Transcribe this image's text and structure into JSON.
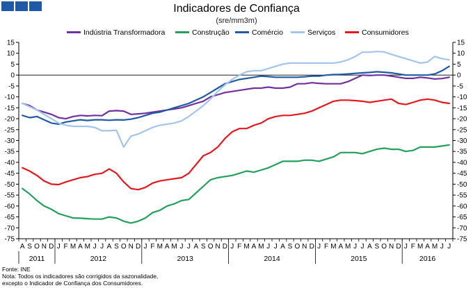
{
  "chart_data": {
    "type": "line",
    "title": "Indicadores de Confiança",
    "subtitle": "(sre/mm3m)",
    "ylim": [
      -75,
      15
    ],
    "y_ticks": [
      15,
      10,
      5,
      0,
      -5,
      -10,
      -15,
      -20,
      -25,
      -30,
      -35,
      -40,
      -45,
      -50,
      -55,
      -60,
      -65,
      -70,
      -75
    ],
    "months": [
      "A",
      "S",
      "O",
      "N",
      "D",
      "J",
      "F",
      "M",
      "A",
      "M",
      "J",
      "J",
      "A",
      "S",
      "O",
      "N",
      "D",
      "J",
      "F",
      "M",
      "A",
      "M",
      "J",
      "J",
      "A",
      "S",
      "O",
      "N",
      "D",
      "J",
      "F",
      "M",
      "A",
      "M",
      "J",
      "J",
      "A",
      "S",
      "O",
      "N",
      "D",
      "J",
      "F",
      "M",
      "A",
      "M",
      "J",
      "J",
      "A",
      "S",
      "O",
      "N",
      "D",
      "J",
      "F",
      "M",
      "A",
      "M",
      "J",
      "J"
    ],
    "years": [
      {
        "label": "2011",
        "start": 0,
        "count": 5
      },
      {
        "label": "2012",
        "start": 5,
        "count": 12
      },
      {
        "label": "2013",
        "start": 17,
        "count": 12
      },
      {
        "label": "2014",
        "start": 29,
        "count": 12
      },
      {
        "label": "2015",
        "start": 41,
        "count": 12
      },
      {
        "label": "2016",
        "start": 53,
        "count": 7
      }
    ],
    "series": [
      {
        "name": "Indústria Transformadora",
        "color": "#7030a0",
        "values": [
          -13,
          -14,
          -16,
          -17,
          -18,
          -19.5,
          -20,
          -19,
          -18.5,
          -18.7,
          -18.5,
          -18.6,
          -16.5,
          -16.3,
          -16.5,
          -18,
          -17.8,
          -17.5,
          -17,
          -16.5,
          -16,
          -15.5,
          -15,
          -14,
          -13,
          -12,
          -10,
          -9,
          -8,
          -7.5,
          -7,
          -6.5,
          -6,
          -6,
          -5.5,
          -6,
          -6,
          -5.5,
          -4,
          -4,
          -3.5,
          -3.8,
          -4,
          -4,
          -4,
          -3,
          -1.5,
          0,
          -0.2,
          0,
          0,
          -0.5,
          -1,
          -1.5,
          -1.5,
          -1,
          -1.3,
          -1.8,
          -1.6,
          -1
        ]
      },
      {
        "name": "Construção",
        "color": "#22a05c",
        "values": [
          -52,
          -54.5,
          -57.5,
          -60,
          -61.5,
          -63.5,
          -64.5,
          -65.5,
          -65.6,
          -65.8,
          -66,
          -66,
          -65,
          -65.5,
          -67,
          -67.8,
          -67,
          -65.5,
          -63,
          -62,
          -60,
          -59,
          -57.5,
          -57,
          -54,
          -51,
          -48,
          -47,
          -46.5,
          -46,
          -45,
          -44,
          -44.5,
          -43.5,
          -42.5,
          -41,
          -39.5,
          -39.5,
          -39.5,
          -39,
          -39,
          -39.5,
          -38.5,
          -37.5,
          -35.5,
          -35.5,
          -35.5,
          -36,
          -35,
          -34,
          -33.5,
          -34,
          -34,
          -35,
          -34.5,
          -33,
          -33,
          -33,
          -32.5,
          -32
        ]
      },
      {
        "name": "Comércio",
        "color": "#1f5aa6",
        "values": [
          -18.5,
          -19.5,
          -19,
          -20.5,
          -22,
          -22.5,
          -21.5,
          -21,
          -20.5,
          -20.8,
          -20.5,
          -20.5,
          -20.7,
          -20.5,
          -20.6,
          -20.2,
          -19.5,
          -18.5,
          -17.5,
          -17,
          -16,
          -15,
          -14,
          -13,
          -11.5,
          -10,
          -8,
          -6,
          -4,
          -3,
          -2,
          -1.5,
          -1,
          -0.5,
          -0.7,
          -1,
          -1,
          -1,
          -1,
          -0.8,
          -0.5,
          -0.5,
          0,
          0.2,
          0.3,
          0.5,
          0.8,
          1,
          1.2,
          1.5,
          1.3,
          1,
          0.5,
          0,
          0,
          0,
          0,
          0.5,
          2,
          4
        ]
      },
      {
        "name": "Serviços",
        "color": "#a3c4ec",
        "values": [
          -13,
          -14.5,
          -16,
          -18,
          -20,
          -22,
          -23,
          -23.5,
          -23.5,
          -23.5,
          -24,
          -25.5,
          -25.5,
          -25.3,
          -33,
          -28,
          -27,
          -25.5,
          -24,
          -23,
          -22.5,
          -22,
          -21,
          -19,
          -16.5,
          -14,
          -11,
          -7.5,
          -4.5,
          -2,
          0,
          1.5,
          2,
          2,
          3,
          4,
          5,
          5.5,
          5.5,
          5.5,
          5.5,
          5.5,
          5.5,
          5.5,
          6,
          7,
          8.5,
          10.5,
          10.5,
          10.8,
          10.6,
          9.5,
          8.5,
          7.5,
          6.5,
          5.5,
          6,
          8.5,
          7.5,
          7
        ]
      },
      {
        "name": "Consumidores",
        "color": "#e8171e",
        "values": [
          -42.5,
          -44,
          -46,
          -48.5,
          -50,
          -50.2,
          -49,
          -48,
          -47,
          -46.5,
          -45.5,
          -45,
          -43,
          -45,
          -49,
          -52,
          -52.5,
          -51.5,
          -49.5,
          -48.5,
          -48,
          -47.5,
          -47,
          -45,
          -41,
          -37,
          -35.5,
          -33,
          -29,
          -26,
          -24.5,
          -24.5,
          -23,
          -22,
          -20,
          -19,
          -18.5,
          -18.5,
          -18,
          -17.5,
          -16.5,
          -15,
          -13.5,
          -12,
          -11.5,
          -11.5,
          -11.7,
          -12,
          -12.5,
          -12,
          -11.5,
          -11,
          -13,
          -13.5,
          -12.5,
          -11.5,
          -11,
          -11.5,
          -12.5,
          -13
        ]
      }
    ]
  },
  "footer": {
    "source": "Fonte: INE",
    "note_line1": "Nota: Todos os indicadores são corrigidos da sazonalidade,",
    "note_line2": "excepto o Indicador de Confiança dos Consumidores."
  }
}
